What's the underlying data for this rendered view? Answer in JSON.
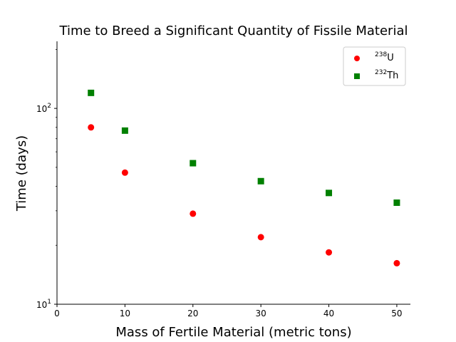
{
  "chart_data": {
    "type": "scatter",
    "title": "Time to Breed a Significant Quantity of Fissile Material",
    "xlabel": "Mass of Fertile Material (metric tons)",
    "ylabel": "Time (days)",
    "xlim": [
      0,
      52
    ],
    "ylim": [
      10,
      220
    ],
    "yscale": "log",
    "x_ticks": [
      0,
      10,
      20,
      30,
      40,
      50
    ],
    "y_ticks": [
      {
        "value": 10,
        "base": "10",
        "exp": "1"
      },
      {
        "value": 100,
        "base": "10",
        "exp": "2"
      }
    ],
    "grid": false,
    "legend_position": "top-right",
    "series": [
      {
        "name": "U",
        "name_sup": "238",
        "marker": "circle",
        "color": "#ff0000",
        "x": [
          5,
          10,
          20,
          30,
          40,
          50
        ],
        "y": [
          80,
          47,
          29,
          22,
          18.4,
          16.2
        ]
      },
      {
        "name": "Th",
        "name_sup": "232",
        "marker": "square",
        "color": "#008000",
        "x": [
          5,
          10,
          20,
          30,
          40,
          50
        ],
        "y": [
          120,
          77,
          52.5,
          42.5,
          37,
          33
        ]
      }
    ]
  }
}
